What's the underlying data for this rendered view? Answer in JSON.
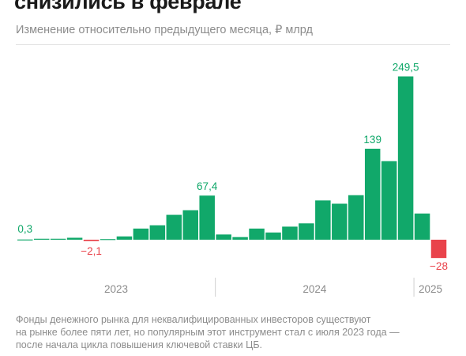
{
  "header": {
    "title": "снизились в феврале",
    "subtitle": "Изменение относительно предыдущего месяца, ₽ млрд"
  },
  "colors": {
    "positive": "#11a86a",
    "negative": "#e9434b",
    "label_positive": "#11a86a",
    "label_negative": "#e9434b",
    "year_text": "#8c8c8c",
    "year_separator": "#cfcfcf"
  },
  "chart_data": {
    "type": "bar",
    "title": "снизились в феврале",
    "subtitle": "Изменение относительно предыдущего месяца, ₽ млрд",
    "xlabel": "",
    "ylabel": "",
    "ylim": [
      -30,
      255
    ],
    "grid": false,
    "legend": "none",
    "values": [
      0.3,
      1.5,
      1.5,
      3,
      -2.1,
      1,
      5,
      17,
      22,
      38,
      45,
      67.4,
      8,
      4,
      17,
      11,
      20,
      25,
      60,
      55,
      68,
      139,
      120,
      249.5,
      40,
      -28
    ],
    "data_labels": [
      {
        "index": 0,
        "text": "0,3"
      },
      {
        "index": 4,
        "text": "−2,1"
      },
      {
        "index": 11,
        "text": "67,4"
      },
      {
        "index": 21,
        "text": "139"
      },
      {
        "index": 23,
        "text": "249,5"
      },
      {
        "index": 25,
        "text": "−28"
      }
    ],
    "year_groups": [
      {
        "label": "2023",
        "start": 0,
        "end": 11
      },
      {
        "label": "2024",
        "start": 12,
        "end": 23
      },
      {
        "label": "2025",
        "start": 24,
        "end": 25
      }
    ]
  },
  "footnote": {
    "lines": [
      "Фонды денежного рынка для неквалифицированных инвесторов существуют",
      "на рынке более пяти лет, но популярным этот инструмент стал с июля 2023 года —",
      "после начала цикла повышения ключевой ставки ЦБ."
    ]
  }
}
